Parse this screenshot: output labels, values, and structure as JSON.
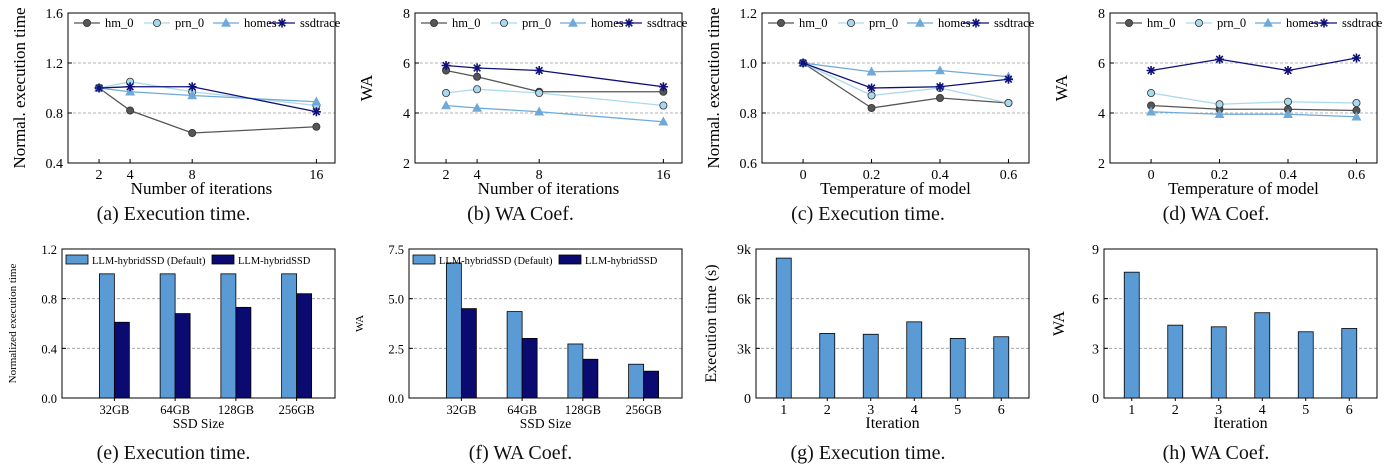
{
  "colors": {
    "hm_0": "#555555",
    "prn_0": "#a9d9ee",
    "homes": "#6ea9d9",
    "ssdtrace": "#10107a",
    "bar_default": "#5b9bd5",
    "bar_llm": "#0a0a70",
    "grid": "#9a9a9a"
  },
  "panels": [
    {
      "caption": "(a) Execution time.",
      "chart_data": {
        "type": "line",
        "xlabel": "Number of iterations",
        "ylabel": "Normal. execution time",
        "xticks": [
          2,
          4,
          8,
          16
        ],
        "xlim": [
          0,
          17.2
        ],
        "ylim": [
          0.4,
          1.6
        ],
        "yticks": [
          "0.4",
          "0.8",
          "1.2",
          "1.6"
        ],
        "grid_y": [
          0.8,
          1.2
        ],
        "legend": "top",
        "series": [
          {
            "name": "hm_0",
            "marker": "circle",
            "x": [
              2,
              4,
              8,
              16
            ],
            "y": [
              1.0,
              0.82,
              0.64,
              0.69
            ]
          },
          {
            "name": "prn_0",
            "marker": "circle",
            "x": [
              2,
              4,
              8,
              16
            ],
            "y": [
              1.0,
              1.05,
              0.97,
              0.86
            ]
          },
          {
            "name": "homes",
            "marker": "triangle",
            "x": [
              2,
              4,
              8,
              16
            ],
            "y": [
              1.0,
              0.97,
              0.94,
              0.89
            ]
          },
          {
            "name": "ssdtrace",
            "marker": "star",
            "x": [
              2,
              4,
              8,
              16
            ],
            "y": [
              1.0,
              1.01,
              1.01,
              0.81
            ]
          }
        ]
      }
    },
    {
      "caption": "(b) WA Coef.",
      "chart_data": {
        "type": "line",
        "xlabel": "Number of iterations",
        "ylabel": "WA",
        "xticks": [
          2,
          4,
          8,
          16
        ],
        "xlim": [
          0,
          17.2
        ],
        "ylim": [
          2,
          8
        ],
        "yticks": [
          "2",
          "4",
          "6",
          "8"
        ],
        "grid_y": [
          4,
          6
        ],
        "legend": "top",
        "series": [
          {
            "name": "hm_0",
            "marker": "circle",
            "x": [
              2,
              4,
              8,
              16
            ],
            "y": [
              5.7,
              5.45,
              4.85,
              4.85
            ]
          },
          {
            "name": "prn_0",
            "marker": "circle",
            "x": [
              2,
              4,
              8,
              16
            ],
            "y": [
              4.8,
              4.95,
              4.8,
              4.3
            ]
          },
          {
            "name": "homes",
            "marker": "triangle",
            "x": [
              2,
              4,
              8,
              16
            ],
            "y": [
              4.3,
              4.2,
              4.05,
              3.65
            ]
          },
          {
            "name": "ssdtrace",
            "marker": "star",
            "x": [
              2,
              4,
              8,
              16
            ],
            "y": [
              5.9,
              5.8,
              5.7,
              5.05
            ]
          }
        ]
      }
    },
    {
      "caption": "(c) Execution time.",
      "chart_data": {
        "type": "line",
        "xlabel": "Temperature of model",
        "ylabel": "Normal. execution time",
        "xticks": [
          0,
          0.2,
          0.4,
          0.6
        ],
        "xlim": [
          -0.12,
          0.66
        ],
        "ylim": [
          0.6,
          1.2
        ],
        "yticks": [
          "0.6",
          "0.8",
          "1.0",
          "1.2"
        ],
        "grid_y": [
          0.8,
          1.0
        ],
        "legend": "top",
        "series": [
          {
            "name": "hm_0",
            "marker": "circle",
            "x": [
              0,
              0.2,
              0.4,
              0.6
            ],
            "y": [
              1.0,
              0.82,
              0.86,
              0.84
            ]
          },
          {
            "name": "prn_0",
            "marker": "circle",
            "x": [
              0,
              0.2,
              0.4,
              0.6
            ],
            "y": [
              1.0,
              0.87,
              0.9,
              0.84
            ]
          },
          {
            "name": "homes",
            "marker": "triangle",
            "x": [
              0,
              0.2,
              0.4,
              0.6
            ],
            "y": [
              1.0,
              0.965,
              0.97,
              0.945
            ]
          },
          {
            "name": "ssdtrace",
            "marker": "star",
            "x": [
              0,
              0.2,
              0.4,
              0.6
            ],
            "y": [
              1.0,
              0.9,
              0.905,
              0.935
            ]
          }
        ]
      }
    },
    {
      "caption": "(d) WA Coef.",
      "chart_data": {
        "type": "line",
        "xlabel": "Temperature of model",
        "ylabel": "WA",
        "xticks": [
          0,
          0.2,
          0.4,
          0.6
        ],
        "xlim": [
          -0.12,
          0.66
        ],
        "ylim": [
          2,
          8
        ],
        "yticks": [
          "2",
          "4",
          "6",
          "8"
        ],
        "grid_y": [
          4,
          6
        ],
        "legend": "top",
        "series": [
          {
            "name": "hm_0",
            "marker": "circle",
            "x": [
              0,
              0.2,
              0.4,
              0.6
            ],
            "y": [
              4.3,
              4.15,
              4.15,
              4.1
            ]
          },
          {
            "name": "prn_0",
            "marker": "circle",
            "x": [
              0,
              0.2,
              0.4,
              0.6
            ],
            "y": [
              4.8,
              4.35,
              4.45,
              4.4
            ]
          },
          {
            "name": "homes",
            "marker": "triangle",
            "x": [
              0,
              0.2,
              0.4,
              0.6
            ],
            "y": [
              4.05,
              3.95,
              3.95,
              3.85
            ]
          },
          {
            "name": "ssdtrace",
            "marker": "star",
            "x": [
              0,
              0.2,
              0.4,
              0.6
            ],
            "y": [
              5.7,
              6.15,
              5.7,
              6.2
            ]
          }
        ]
      }
    },
    {
      "caption": "(e) Execution time.",
      "chart_data": {
        "type": "bar",
        "xlabel": "SSD Size",
        "ylabel": "Normalized execution time",
        "categories": [
          "32GB",
          "64GB",
          "128GB",
          "256GB"
        ],
        "ylim": [
          0,
          1.2
        ],
        "yticks": [
          "0.0",
          "0.4",
          "0.8",
          "1.2"
        ],
        "grid_y": [
          0.4,
          0.8
        ],
        "legend": "top",
        "series": [
          {
            "name": "LLM-hybridSSD (Default)",
            "values": [
              1.0,
              1.0,
              1.0,
              1.0
            ]
          },
          {
            "name": "LLM-hybridSSD",
            "values": [
              0.61,
              0.68,
              0.73,
              0.84
            ]
          }
        ]
      }
    },
    {
      "caption": "(f) WA Coef.",
      "chart_data": {
        "type": "bar",
        "xlabel": "SSD Size",
        "ylabel": "WA",
        "categories": [
          "32GB",
          "64GB",
          "128GB",
          "256GB"
        ],
        "ylim": [
          0,
          7.5
        ],
        "yticks": [
          "0.0",
          "2.5",
          "5.0",
          "7.5"
        ],
        "grid_y": [
          2.5,
          5.0
        ],
        "legend": "top",
        "series": [
          {
            "name": "LLM-hybridSSD (Default)",
            "values": [
              6.8,
              4.35,
              2.72,
              1.7
            ]
          },
          {
            "name": "LLM-hybridSSD",
            "values": [
              4.5,
              3.0,
              1.95,
              1.35
            ]
          }
        ]
      }
    },
    {
      "caption": "(g) Execution time.",
      "chart_data": {
        "type": "bar",
        "xlabel": "Iteration",
        "ylabel": "Execution time (s)",
        "categories": [
          "1",
          "2",
          "3",
          "4",
          "5",
          "6"
        ],
        "ylim": [
          0,
          9000
        ],
        "yticks": [
          "0",
          "3k",
          "6k",
          "9k"
        ],
        "grid_y": [
          3000,
          6000
        ],
        "series": [
          {
            "values": [
              8450,
              3900,
              3850,
              4600,
              3600,
              3700
            ]
          }
        ]
      }
    },
    {
      "caption": "(h) WA Coef.",
      "chart_data": {
        "type": "bar",
        "xlabel": "Iteration",
        "ylabel": "WA",
        "categories": [
          "1",
          "2",
          "3",
          "4",
          "5",
          "6"
        ],
        "ylim": [
          0,
          9
        ],
        "yticks": [
          "0",
          "3",
          "6",
          "9"
        ],
        "grid_y": [
          3,
          6
        ],
        "series": [
          {
            "values": [
              7.6,
              4.4,
              4.3,
              5.15,
              4.0,
              4.2
            ]
          }
        ]
      }
    }
  ]
}
